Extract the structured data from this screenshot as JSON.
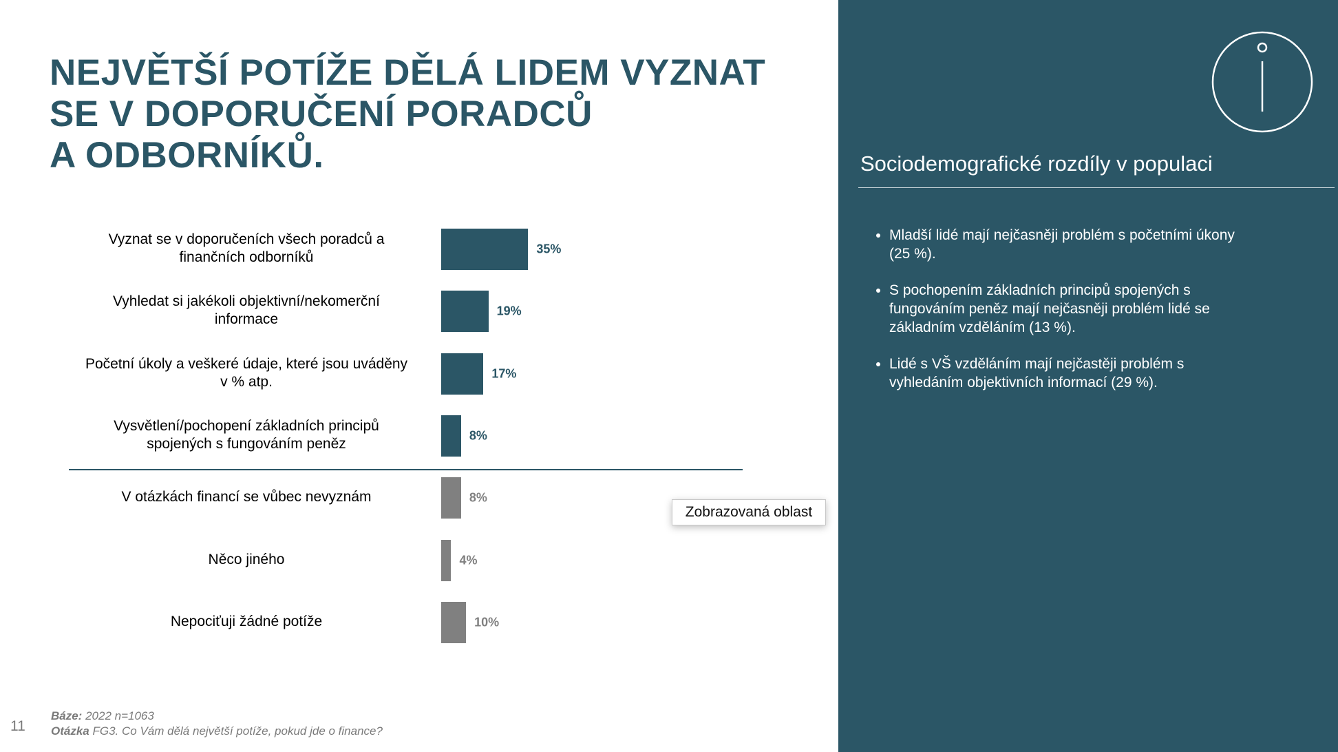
{
  "slide": {
    "title": "NEJVĚTŠÍ POTÍŽE DĚLÁ LIDEM VYZNAT\nSE V DOPORUČENÍ PORADCŮ\nA ODBORNÍKŮ.",
    "page_number": "11",
    "footer": {
      "base_label": "Báze:",
      "base_text": "2022 n=1063",
      "question_label": "Otázka",
      "question_text": "FG3. Co Vám dělá největší potíže, pokud jde o finance?"
    },
    "tooltip": "Zobrazovaná oblast",
    "panel": {
      "heading": "Sociodemografické rozdíly v populaci",
      "bullets": [
        "Mladší lidé mají nejčasněji problém s početními úkony\n(25 %).",
        "S pochopením základních principů spojených s\nfungováním peněz mají nejčasněji problém lidé se\nzákladním vzděláním (13 %).",
        "Lidé s VŠ vzděláním mají nejčastěji problém s\nvyhledáním objektivních informací (29 %)."
      ]
    }
  },
  "chart_data": {
    "type": "bar",
    "orientation": "horizontal",
    "categories": [
      "Vyznat se v doporučeních všech poradců a\nfinančních odborníků",
      "Vyhledat si jakékoli objektivní/nekomerční\ninformace",
      "Početní úkoly a veškeré údaje, které jsou uváděny\nv % atp.",
      "Vysvětlení/pochopení základních principů\nspojených s fungováním peněz",
      "V otázkách financí se vůbec nevyznám",
      "Něco jiného",
      "Nepociťuji žádné potíže"
    ],
    "values": [
      35,
      19,
      17,
      8,
      8,
      4,
      10
    ],
    "value_labels": [
      "35%",
      "19%",
      "17%",
      "8%",
      "8%",
      "4%",
      "10%"
    ],
    "colors": [
      "#2b5666",
      "#2b5666",
      "#2b5666",
      "#2b5666",
      "#808080",
      "#808080",
      "#808080"
    ]
  }
}
